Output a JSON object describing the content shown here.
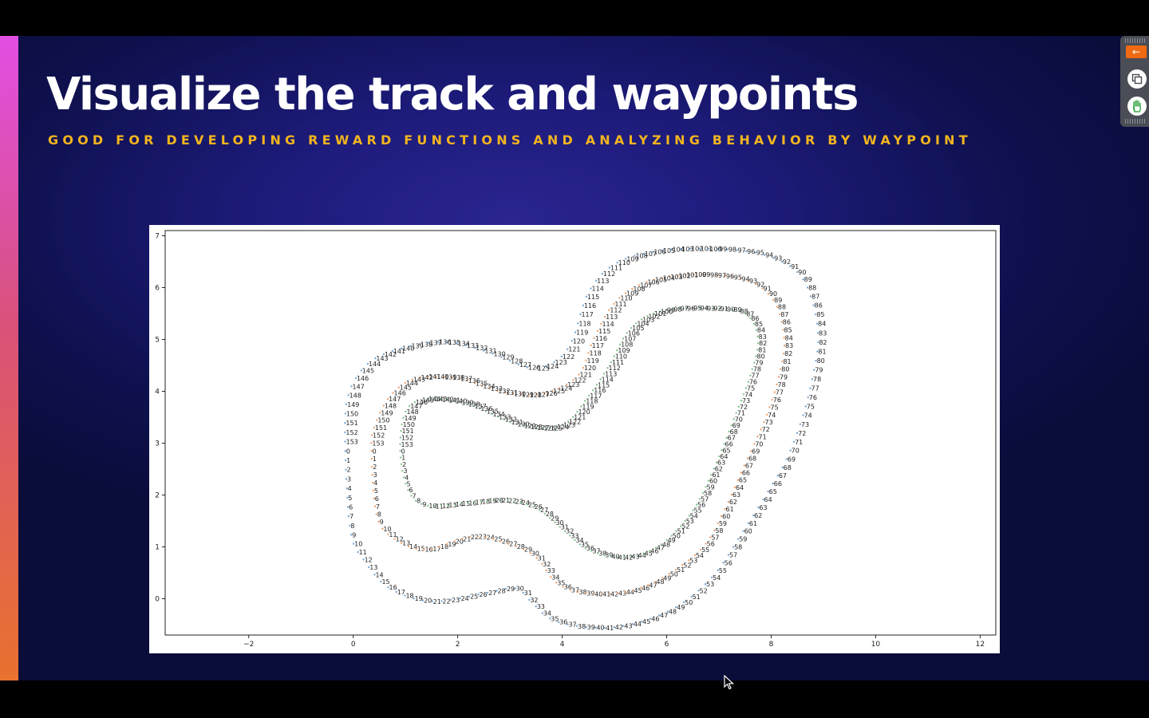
{
  "slide": {
    "title": "Visualize the track and waypoints",
    "subtitle": "GOOD FOR DEVELOPING REWARD FUNCTIONS AND ANALYZING BEHAVIOR BY WAYPOINT"
  },
  "toolbar": {
    "collapse_icon": "arrow-left-icon",
    "copy_icon": "copy-icon",
    "hand_icon": "raise-hand-icon",
    "accent_color": "#f06a13"
  },
  "chart_data": {
    "type": "scatter",
    "title": "",
    "xlabel": "",
    "ylabel": "",
    "xlim": [
      -3.6,
      12.3
    ],
    "ylim": [
      -0.7,
      7.1
    ],
    "xticks": [
      -2,
      0,
      2,
      4,
      6,
      8,
      10,
      12
    ],
    "yticks": [
      0,
      1,
      2,
      3,
      4,
      5,
      6,
      7
    ],
    "grid": false,
    "point_labels": "waypoint index 0-153",
    "series": [
      {
        "role": "outer-border",
        "points": [
          [
            -0.15,
            2.85
          ],
          [
            -0.05,
            1.3
          ],
          [
            0.2,
            0.75
          ],
          [
            0.7,
            0.2
          ],
          [
            1.5,
            -0.05
          ],
          [
            2.5,
            0.1
          ],
          [
            3.1,
            0.2
          ],
          [
            3.4,
            -0.05
          ],
          [
            3.8,
            -0.4
          ],
          [
            4.5,
            -0.55
          ],
          [
            5.3,
            -0.5
          ],
          [
            6.2,
            -0.15
          ],
          [
            6.9,
            0.45
          ],
          [
            7.4,
            1.2
          ],
          [
            7.9,
            2.0
          ],
          [
            8.3,
            2.7
          ],
          [
            8.6,
            3.5
          ],
          [
            8.8,
            4.3
          ],
          [
            8.9,
            5.0
          ],
          [
            8.8,
            5.7
          ],
          [
            8.5,
            6.3
          ],
          [
            7.8,
            6.65
          ],
          [
            6.8,
            6.75
          ],
          [
            5.8,
            6.7
          ],
          [
            5.0,
            6.45
          ],
          [
            4.5,
            5.9
          ],
          [
            4.2,
            5.0
          ],
          [
            3.9,
            4.6
          ],
          [
            3.4,
            4.45
          ],
          [
            2.6,
            4.75
          ],
          [
            1.8,
            4.95
          ],
          [
            1.0,
            4.85
          ],
          [
            0.3,
            4.55
          ],
          [
            -0.1,
            3.9
          ],
          [
            -0.15,
            2.85
          ]
        ]
      },
      {
        "role": "center-line",
        "points": [
          [
            0.35,
            2.85
          ],
          [
            0.45,
            1.6
          ],
          [
            0.8,
            1.15
          ],
          [
            1.4,
            0.95
          ],
          [
            2.3,
            1.2
          ],
          [
            3.0,
            1.05
          ],
          [
            3.5,
            0.8
          ],
          [
            3.9,
            0.3
          ],
          [
            4.5,
            0.1
          ],
          [
            5.3,
            0.15
          ],
          [
            6.0,
            0.45
          ],
          [
            6.7,
            1.0
          ],
          [
            7.1,
            1.7
          ],
          [
            7.5,
            2.6
          ],
          [
            7.9,
            3.5
          ],
          [
            8.15,
            4.3
          ],
          [
            8.25,
            5.0
          ],
          [
            8.05,
            5.75
          ],
          [
            7.5,
            6.15
          ],
          [
            6.5,
            6.25
          ],
          [
            5.6,
            6.1
          ],
          [
            5.0,
            5.7
          ],
          [
            4.6,
            5.0
          ],
          [
            4.3,
            4.3
          ],
          [
            3.6,
            3.95
          ],
          [
            2.8,
            4.0
          ],
          [
            2.0,
            4.25
          ],
          [
            1.2,
            4.25
          ],
          [
            0.7,
            3.9
          ],
          [
            0.4,
            3.3
          ],
          [
            0.35,
            2.85
          ]
        ]
      },
      {
        "role": "inner-border",
        "points": [
          [
            0.9,
            2.85
          ],
          [
            1.05,
            2.1
          ],
          [
            1.4,
            1.8
          ],
          [
            2.2,
            1.85
          ],
          [
            2.9,
            1.9
          ],
          [
            3.5,
            1.75
          ],
          [
            4.0,
            1.35
          ],
          [
            4.5,
            0.95
          ],
          [
            5.2,
            0.8
          ],
          [
            5.9,
            1.05
          ],
          [
            6.5,
            1.7
          ],
          [
            6.9,
            2.5
          ],
          [
            7.3,
            3.5
          ],
          [
            7.6,
            4.3
          ],
          [
            7.75,
            5.0
          ],
          [
            7.5,
            5.5
          ],
          [
            6.8,
            5.6
          ],
          [
            5.9,
            5.55
          ],
          [
            5.3,
            5.2
          ],
          [
            4.9,
            4.5
          ],
          [
            4.5,
            3.9
          ],
          [
            4.0,
            3.35
          ],
          [
            3.2,
            3.35
          ],
          [
            2.2,
            3.75
          ],
          [
            1.4,
            3.85
          ],
          [
            1.0,
            3.6
          ],
          [
            0.9,
            2.85
          ]
        ]
      }
    ]
  }
}
